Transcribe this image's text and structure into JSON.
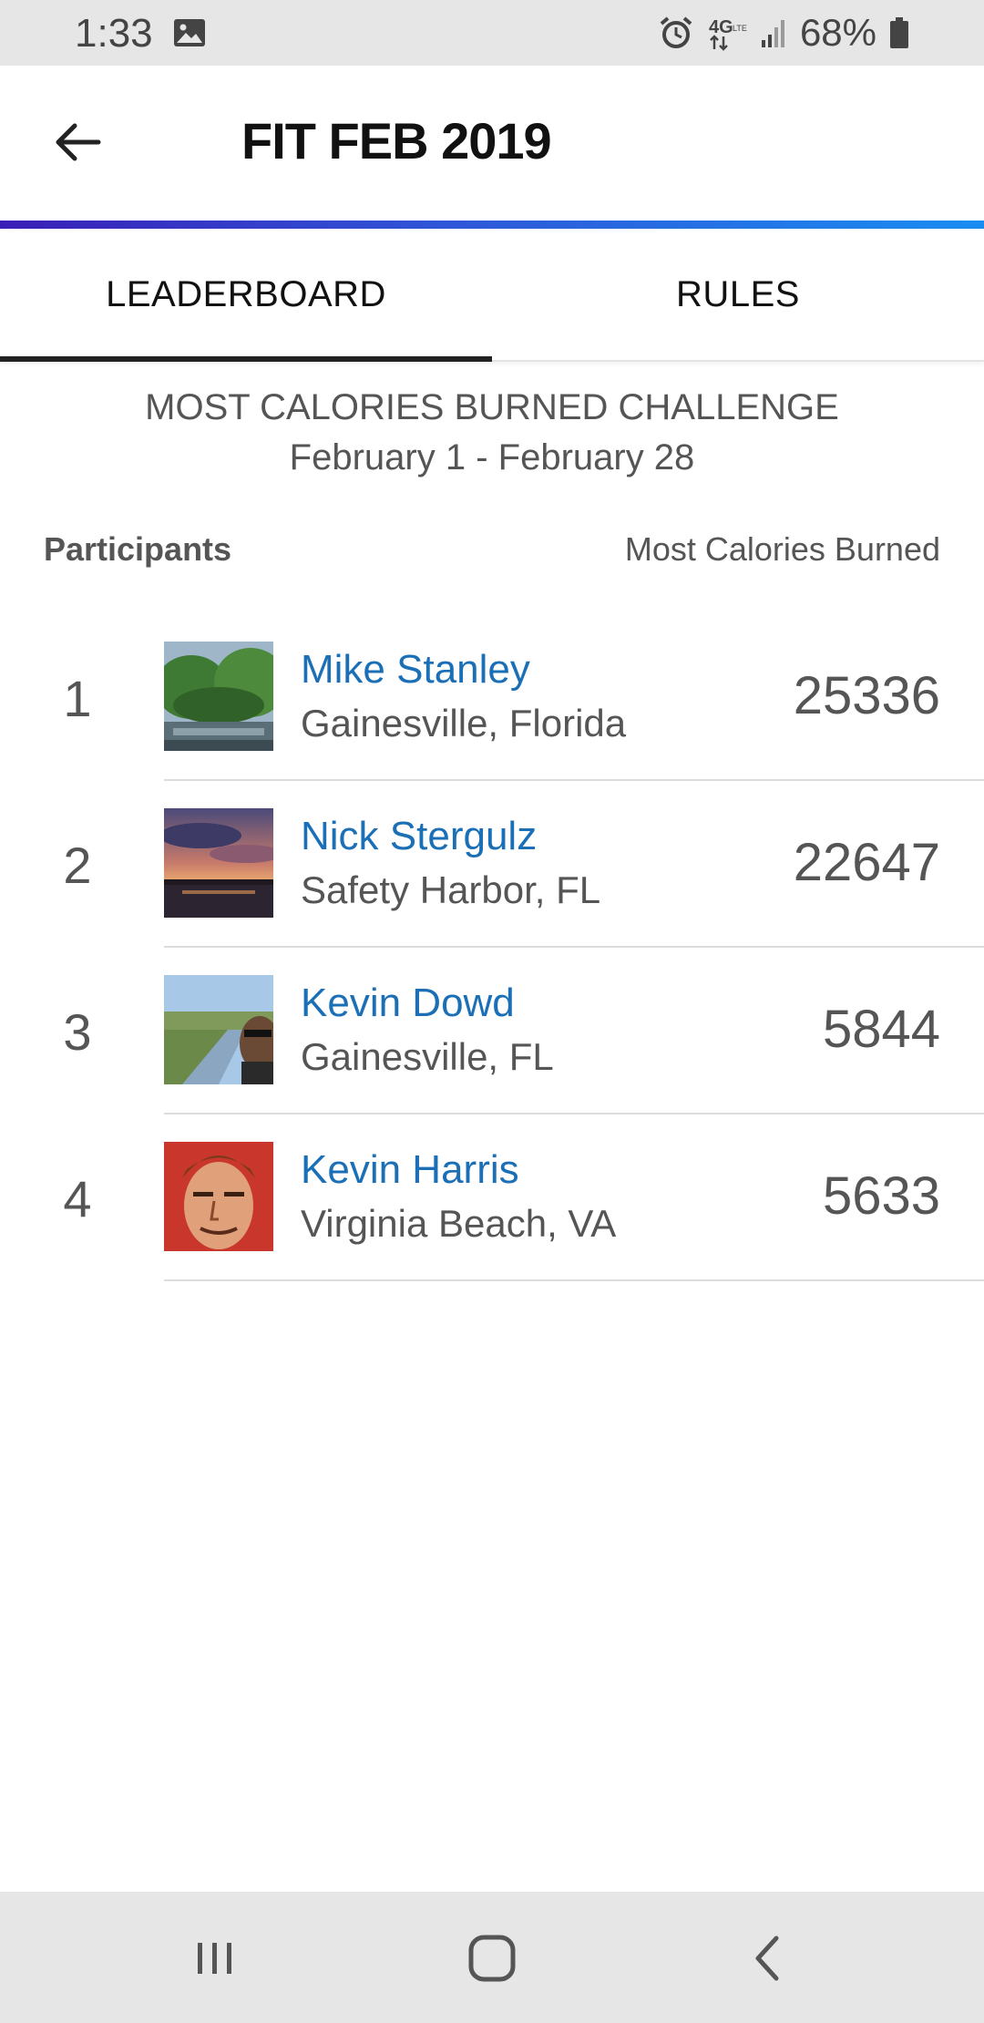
{
  "status_bar": {
    "time": "1:33",
    "network": "4G LTE",
    "battery": "68%"
  },
  "app_bar": {
    "title": "FIT FEB 2019"
  },
  "tabs": [
    {
      "label": "LEADERBOARD",
      "active": true
    },
    {
      "label": "RULES",
      "active": false
    }
  ],
  "challenge": {
    "name": "MOST CALORIES BURNED CHALLENGE",
    "dates": "February 1 - February 28"
  },
  "columns": {
    "left": "Participants",
    "right": "Most Calories Burned"
  },
  "participants": [
    {
      "rank": "1",
      "name": "Mike Stanley",
      "location": "Gainesville, Florida",
      "score": "25336"
    },
    {
      "rank": "2",
      "name": "Nick Stergulz",
      "location": "Safety Harbor, FL",
      "score": "22647"
    },
    {
      "rank": "3",
      "name": "Kevin Dowd",
      "location": "Gainesville, FL",
      "score": "5844"
    },
    {
      "rank": "4",
      "name": "Kevin Harris",
      "location": "Virginia Beach, VA",
      "score": "5633"
    }
  ],
  "colors": {
    "name_link": "#1a6fb6",
    "gradient_start": "#3a1fb7",
    "gradient_end": "#1a8df0"
  }
}
